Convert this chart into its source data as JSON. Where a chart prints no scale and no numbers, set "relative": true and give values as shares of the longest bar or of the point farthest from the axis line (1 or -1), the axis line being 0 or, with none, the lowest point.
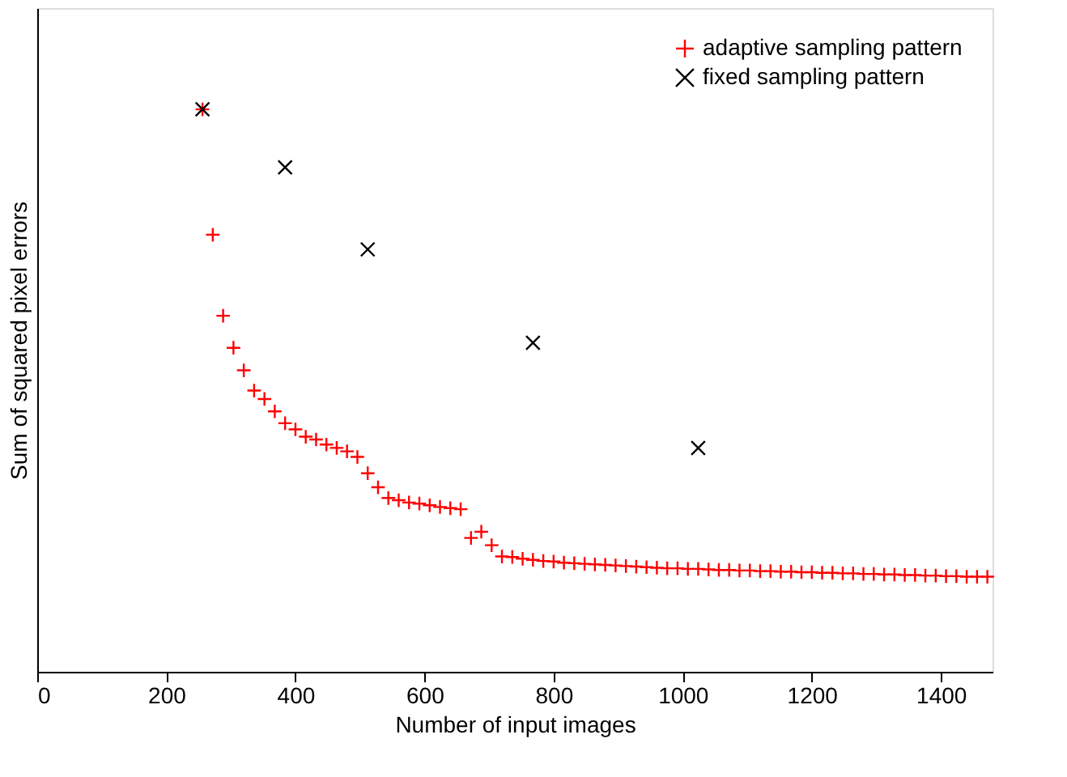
{
  "chart_data": {
    "type": "scatter",
    "xlabel": "Number of input images",
    "ylabel": "Sum of squared pixel errors",
    "relative": true,
    "xlim": [
      0,
      1480
    ],
    "xticks": [
      0,
      200,
      400,
      600,
      800,
      1000,
      1200,
      1400
    ],
    "grid": false,
    "legend": "top right",
    "series": [
      {
        "name": "adaptive sampling pattern",
        "color": "#ff0000",
        "marker": "cross",
        "x": [
          256,
          272,
          288,
          304,
          320,
          336,
          352,
          368,
          384,
          400,
          416,
          432,
          448,
          464,
          480,
          496,
          512,
          528,
          544,
          560,
          576,
          592,
          608,
          624,
          640,
          656,
          672,
          688,
          704,
          720,
          736,
          752,
          768,
          784,
          800,
          816,
          832,
          848,
          864,
          880,
          896,
          912,
          928,
          944,
          960,
          976,
          992,
          1008,
          1024,
          1040,
          1056,
          1072,
          1088,
          1104,
          1120,
          1136,
          1152,
          1168,
          1184,
          1200,
          1216,
          1232,
          1248,
          1264,
          1280,
          1296,
          1312,
          1328,
          1344,
          1360,
          1376,
          1392,
          1408,
          1424,
          1440,
          1456,
          1472
        ],
        "values": [
          1.0,
          0.777,
          0.633,
          0.576,
          0.536,
          0.5,
          0.485,
          0.463,
          0.442,
          0.431,
          0.418,
          0.413,
          0.404,
          0.398,
          0.392,
          0.382,
          0.353,
          0.328,
          0.309,
          0.305,
          0.301,
          0.299,
          0.296,
          0.293,
          0.291,
          0.289,
          0.238,
          0.249,
          0.225,
          0.205,
          0.204,
          0.201,
          0.199,
          0.197,
          0.196,
          0.194,
          0.193,
          0.192,
          0.191,
          0.19,
          0.189,
          0.188,
          0.187,
          0.186,
          0.185,
          0.184,
          0.184,
          0.183,
          0.183,
          0.182,
          0.181,
          0.181,
          0.18,
          0.18,
          0.179,
          0.179,
          0.178,
          0.178,
          0.177,
          0.177,
          0.176,
          0.176,
          0.175,
          0.175,
          0.174,
          0.174,
          0.173,
          0.173,
          0.172,
          0.172,
          0.171,
          0.171,
          0.17,
          0.17,
          0.169,
          0.169,
          0.169
        ]
      },
      {
        "name": "fixed sampling pattern",
        "color": "#000000",
        "marker": "x",
        "x": [
          256,
          384,
          512,
          768,
          1024
        ],
        "values": [
          1.0,
          0.897,
          0.751,
          0.585,
          0.398
        ]
      }
    ]
  }
}
